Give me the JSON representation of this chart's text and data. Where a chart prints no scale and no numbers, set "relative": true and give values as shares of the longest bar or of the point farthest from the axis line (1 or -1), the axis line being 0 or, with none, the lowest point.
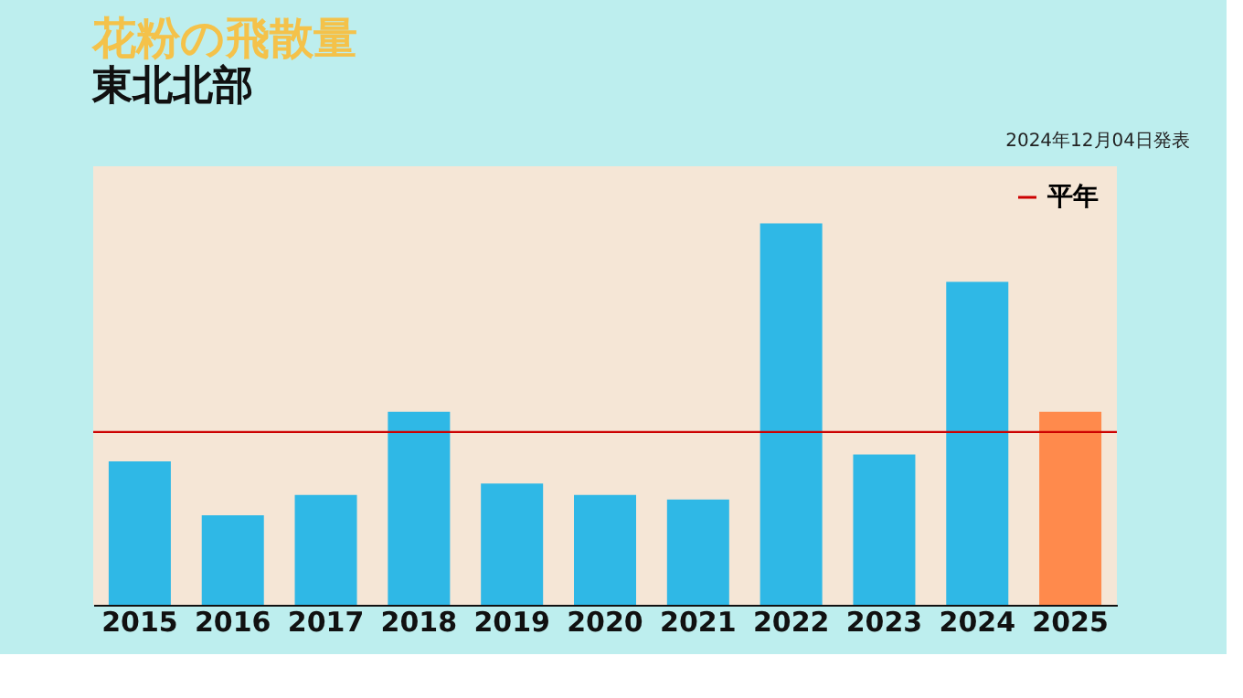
{
  "chart_data": {
    "type": "bar",
    "title": "花粉の飛散量",
    "subtitle": "東北北部",
    "relative": true,
    "categories": [
      "2015",
      "2016",
      "2017",
      "2018",
      "2019",
      "2020",
      "2021",
      "2022",
      "2023",
      "2024",
      "2025"
    ],
    "values": [
      0.376,
      0.235,
      0.288,
      0.506,
      0.318,
      0.288,
      0.276,
      1,
      0.394,
      0.847,
      0.506
    ],
    "colors": [
      "#2fb8e6",
      "#2fb8e6",
      "#2fb8e6",
      "#2fb8e6",
      "#2fb8e6",
      "#2fb8e6",
      "#2fb8e6",
      "#2fb8e6",
      "#2fb8e6",
      "#2fb8e6",
      "#ff8a4c"
    ],
    "ref_lines": [
      {
        "axis": "y",
        "value": 0.453,
        "label": "平年",
        "color": "#cc0000"
      }
    ],
    "annotations": [
      "2024年12月04日発表"
    ],
    "legend": "top right",
    "grid": false
  }
}
